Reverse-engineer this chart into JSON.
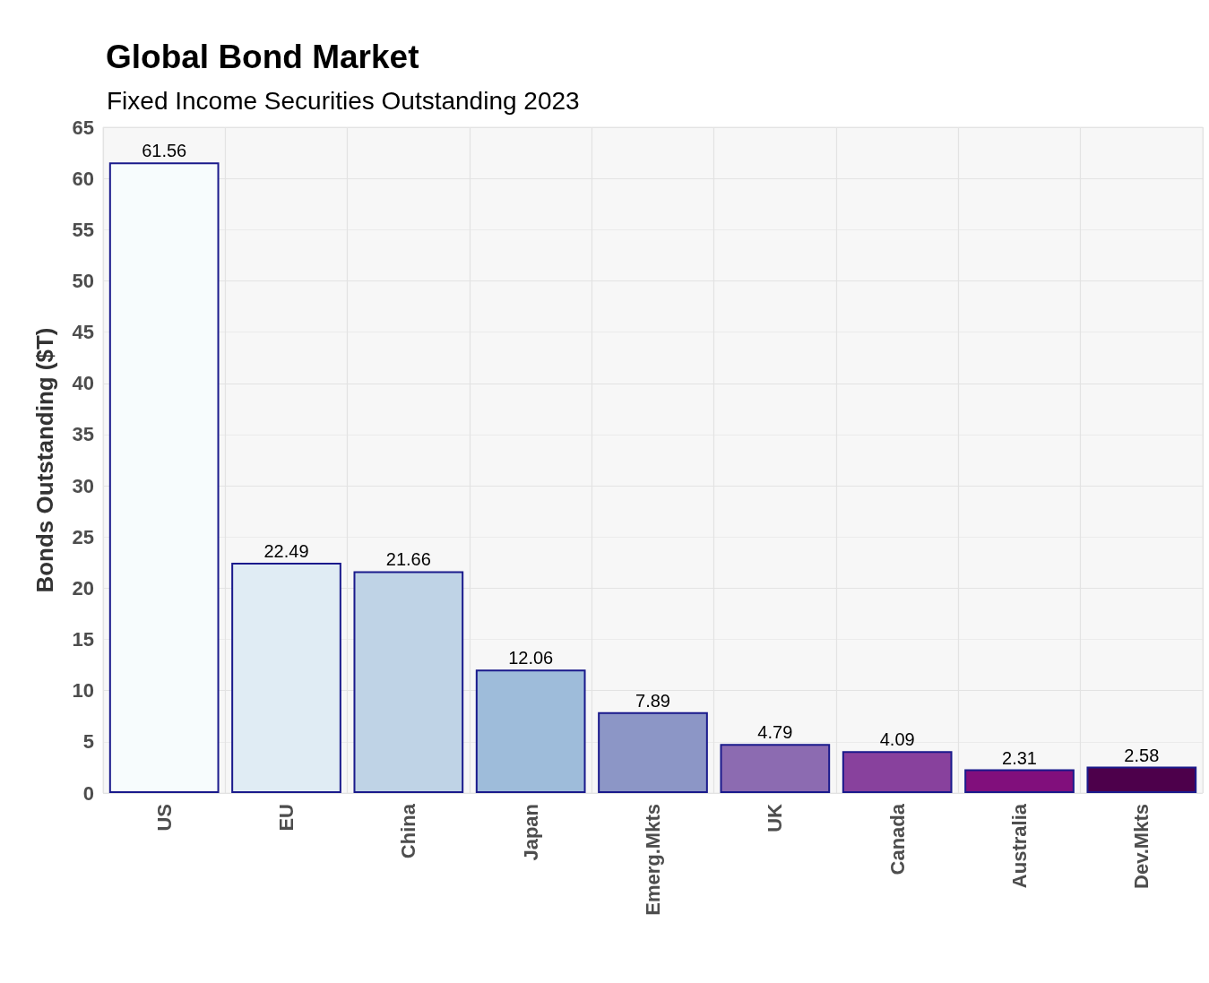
{
  "chart_data": {
    "type": "bar",
    "title": "Global Bond Market",
    "subtitle": "Fixed Income Securities Outstanding 2023",
    "ylabel": "Bonds Outstanding ($T)",
    "categories": [
      "US",
      "EU",
      "China",
      "Japan",
      "Emerg.Mkts",
      "UK",
      "Canada",
      "Australia",
      "Dev.Mkts"
    ],
    "values": [
      61.56,
      22.49,
      21.66,
      12.06,
      7.89,
      4.79,
      4.09,
      2.31,
      2.58
    ],
    "colors": [
      "#f7fcfd",
      "#e0ecf4",
      "#bfd3e6",
      "#9ebcda",
      "#8c96c6",
      "#8c6bb1",
      "#88419d",
      "#810f7c",
      "#4d004b"
    ],
    "ylim": [
      0,
      65
    ],
    "yticks": [
      0,
      5,
      10,
      15,
      20,
      25,
      30,
      35,
      40,
      45,
      50,
      55,
      60,
      65
    ],
    "grid": true,
    "data_labels": true
  }
}
